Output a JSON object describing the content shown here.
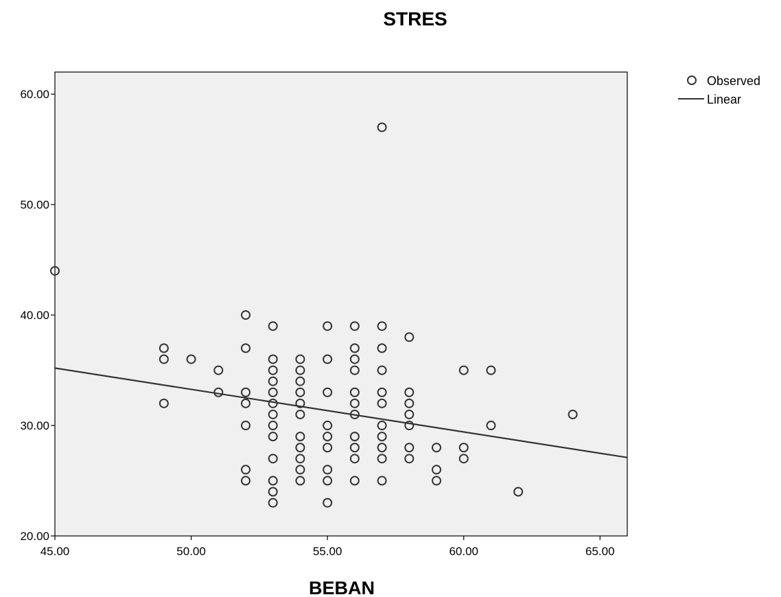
{
  "chart_data": {
    "type": "scatter",
    "title": "STRES",
    "xlabel": "BEBAN",
    "ylabel": "",
    "xlim": [
      45,
      66
    ],
    "ylim": [
      20,
      62
    ],
    "x_ticks": [
      45,
      50,
      55,
      60,
      65
    ],
    "y_ticks": [
      20,
      30,
      40,
      50,
      60
    ],
    "x_tick_labels": [
      "45.00",
      "50.00",
      "55.00",
      "60.00",
      "65.00"
    ],
    "y_tick_labels": [
      "20.00",
      "30.00",
      "40.00",
      "50.00",
      "60.00"
    ],
    "grid": false,
    "legend_position": "top-right",
    "legend": [
      {
        "label": "Observed",
        "kind": "marker"
      },
      {
        "label": "Linear",
        "kind": "line"
      }
    ],
    "series": [
      {
        "name": "Observed",
        "marker": "circle-open",
        "points": [
          [
            45,
            44
          ],
          [
            49,
            37
          ],
          [
            49,
            36
          ],
          [
            49,
            32
          ],
          [
            50,
            36
          ],
          [
            51,
            35
          ],
          [
            51,
            33
          ],
          [
            52,
            40
          ],
          [
            52,
            37
          ],
          [
            52,
            33
          ],
          [
            52,
            32
          ],
          [
            52,
            30
          ],
          [
            52,
            26
          ],
          [
            52,
            25
          ],
          [
            53,
            39
          ],
          [
            53,
            36
          ],
          [
            53,
            35
          ],
          [
            53,
            34
          ],
          [
            53,
            33
          ],
          [
            53,
            32
          ],
          [
            53,
            31
          ],
          [
            53,
            30
          ],
          [
            53,
            29
          ],
          [
            53,
            27
          ],
          [
            53,
            25
          ],
          [
            53,
            24
          ],
          [
            53,
            23
          ],
          [
            54,
            36
          ],
          [
            54,
            35
          ],
          [
            54,
            34
          ],
          [
            54,
            33
          ],
          [
            54,
            32
          ],
          [
            54,
            31
          ],
          [
            54,
            29
          ],
          [
            54,
            28
          ],
          [
            54,
            27
          ],
          [
            54,
            26
          ],
          [
            54,
            25
          ],
          [
            55,
            39
          ],
          [
            55,
            36
          ],
          [
            55,
            33
          ],
          [
            55,
            30
          ],
          [
            55,
            29
          ],
          [
            55,
            28
          ],
          [
            55,
            26
          ],
          [
            55,
            25
          ],
          [
            55,
            23
          ],
          [
            56,
            39
          ],
          [
            56,
            37
          ],
          [
            56,
            36
          ],
          [
            56,
            35
          ],
          [
            56,
            33
          ],
          [
            56,
            32
          ],
          [
            56,
            31
          ],
          [
            56,
            29
          ],
          [
            56,
            28
          ],
          [
            56,
            27
          ],
          [
            56,
            25
          ],
          [
            57,
            57
          ],
          [
            57,
            39
          ],
          [
            57,
            37
          ],
          [
            57,
            35
          ],
          [
            57,
            33
          ],
          [
            57,
            32
          ],
          [
            57,
            30
          ],
          [
            57,
            29
          ],
          [
            57,
            28
          ],
          [
            57,
            27
          ],
          [
            57,
            25
          ],
          [
            58,
            38
          ],
          [
            58,
            33
          ],
          [
            58,
            32
          ],
          [
            58,
            31
          ],
          [
            58,
            30
          ],
          [
            58,
            28
          ],
          [
            58,
            27
          ],
          [
            59,
            28
          ],
          [
            59,
            26
          ],
          [
            59,
            25
          ],
          [
            60,
            35
          ],
          [
            60,
            28
          ],
          [
            60,
            27
          ],
          [
            61,
            35
          ],
          [
            61,
            30
          ],
          [
            62,
            24
          ],
          [
            64,
            31
          ]
        ]
      },
      {
        "name": "Linear",
        "type": "line",
        "points": [
          [
            45,
            35.2
          ],
          [
            66,
            27.1
          ]
        ]
      }
    ]
  }
}
